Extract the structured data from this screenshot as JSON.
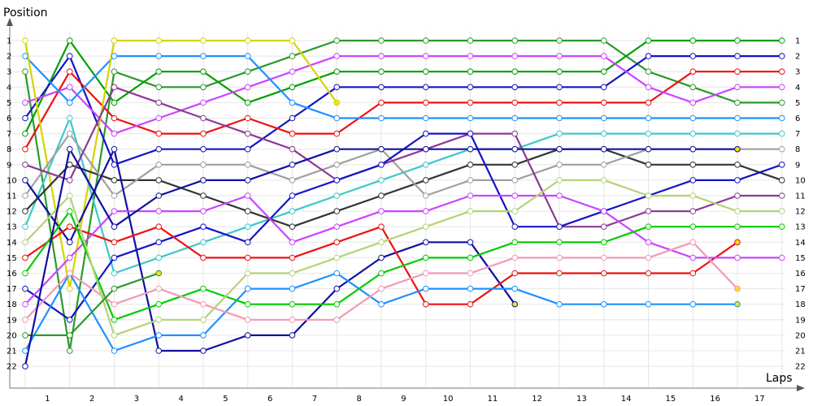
{
  "chart_data": {
    "type": "line",
    "title": "",
    "xlabel": "Laps",
    "ylabel": "Position",
    "x_ticks": [
      "1",
      "2",
      "3",
      "4",
      "5",
      "6",
      "7",
      "8",
      "9",
      "10",
      "11",
      "12",
      "13",
      "14",
      "15",
      "16",
      "17"
    ],
    "y_ticks": [
      "1",
      "2",
      "3",
      "4",
      "5",
      "6",
      "7",
      "8",
      "9",
      "10",
      "11",
      "12",
      "13",
      "14",
      "15",
      "16",
      "17",
      "18",
      "19",
      "20",
      "21",
      "22"
    ],
    "xlim": [
      0,
      17.8
    ],
    "ylim": [
      1,
      22
    ],
    "grid": true,
    "legend": "none",
    "series": [
      {
        "color": "#2a9a2a",
        "x": [
          0,
          1,
          2,
          3,
          4,
          5,
          6,
          7,
          8,
          9,
          10,
          11,
          12,
          13,
          14,
          15,
          16,
          17
        ],
        "y": [
          3,
          21,
          3,
          4,
          4,
          3,
          2,
          1,
          1,
          1,
          1,
          1,
          1,
          1,
          3,
          4,
          5,
          5
        ]
      },
      {
        "color": "#00a000",
        "x": [
          0,
          1,
          2,
          3,
          4,
          5,
          6,
          7,
          8,
          9,
          10,
          11,
          12,
          13,
          14,
          15,
          16,
          17
        ],
        "y": [
          7,
          1,
          5,
          3,
          3,
          5,
          4,
          3,
          3,
          3,
          3,
          3,
          3,
          3,
          1,
          1,
          1,
          1
        ]
      },
      {
        "color": "#1414c8",
        "x": [
          0,
          1,
          2,
          3,
          4,
          5,
          6,
          7,
          8,
          9,
          10,
          11,
          12,
          13,
          14,
          15,
          16,
          17
        ],
        "y": [
          6,
          2,
          9,
          8,
          8,
          8,
          6,
          4,
          4,
          4,
          4,
          4,
          4,
          4,
          2,
          2,
          2,
          2
        ]
      },
      {
        "color": "#ee1111",
        "x": [
          0,
          1,
          2,
          3,
          4,
          5,
          6,
          7,
          8,
          9,
          10,
          11,
          12,
          13,
          14,
          15,
          16,
          17
        ],
        "y": [
          8,
          3,
          6,
          7,
          7,
          6,
          7,
          7,
          5,
          5,
          5,
          5,
          5,
          5,
          5,
          3,
          3,
          3
        ]
      },
      {
        "color": "#cc44ff",
        "x": [
          0,
          1,
          2,
          3,
          4,
          5,
          6,
          7,
          8,
          9,
          10,
          11,
          12,
          13,
          14,
          15,
          16,
          17
        ],
        "y": [
          5,
          4,
          7,
          6,
          5,
          4,
          3,
          2,
          2,
          2,
          2,
          2,
          2,
          2,
          4,
          5,
          4,
          4
        ]
      },
      {
        "color": "#1e90ff",
        "x": [
          0,
          1,
          2,
          3,
          4,
          5,
          6,
          7,
          8,
          9,
          10,
          11,
          12,
          13,
          14,
          15,
          16,
          17
        ],
        "y": [
          2,
          5,
          2,
          2,
          2,
          2,
          5,
          6,
          6,
          6,
          6,
          6,
          6,
          6,
          6,
          6,
          6,
          6
        ]
      },
      {
        "color": "#d4d400",
        "x": [
          0,
          1,
          2,
          3,
          4,
          5,
          6,
          7
        ],
        "y": [
          1,
          17,
          1,
          1,
          1,
          1,
          1,
          5
        ]
      },
      {
        "color": "#3cc8c8",
        "x": [
          0,
          1,
          2,
          3,
          4,
          5,
          6,
          7,
          8,
          9,
          10,
          11,
          12,
          13,
          14,
          15,
          16,
          17
        ],
        "y": [
          13,
          6,
          16,
          15,
          14,
          13,
          12,
          11,
          10,
          9,
          8,
          8,
          7,
          7,
          7,
          7,
          7,
          7
        ]
      },
      {
        "color": "#333333",
        "x": [
          0,
          1,
          2,
          3,
          4,
          5,
          6,
          7,
          8,
          9,
          10,
          11,
          12,
          13,
          14,
          15,
          16,
          17
        ],
        "y": [
          12,
          9,
          10,
          10,
          11,
          12,
          13,
          12,
          11,
          10,
          9,
          9,
          8,
          8,
          9,
          9,
          9,
          10
        ]
      },
      {
        "color": "#a0a0a0",
        "x": [
          0,
          1,
          2,
          3,
          4,
          5,
          6,
          7,
          8,
          9,
          10,
          11,
          12,
          13,
          14,
          15,
          16,
          17
        ],
        "y": [
          11,
          7,
          11,
          9,
          9,
          9,
          10,
          9,
          8,
          11,
          10,
          10,
          9,
          9,
          8,
          8,
          8,
          8
        ]
      },
      {
        "color": "#8b3a96",
        "x": [
          0,
          1,
          2,
          3,
          4,
          5,
          6,
          7,
          8,
          9,
          10,
          11,
          12,
          13,
          14,
          15,
          16,
          17
        ],
        "y": [
          9,
          10,
          4,
          5,
          6,
          7,
          8,
          10,
          9,
          8,
          7,
          7,
          13,
          13,
          12,
          12,
          11,
          11
        ]
      },
      {
        "color": "#1010a0",
        "x": [
          0,
          1,
          2,
          3,
          4,
          5,
          6,
          7,
          8,
          9,
          10,
          11
        ],
        "y": [
          10,
          14,
          8,
          21,
          21,
          20,
          20,
          17,
          15,
          14,
          14,
          18
        ]
      },
      {
        "color": "#1414c8",
        "x": [
          0,
          1,
          2,
          3,
          4,
          5,
          6,
          7,
          8,
          9,
          10,
          11,
          12,
          13,
          14,
          15,
          16,
          17
        ],
        "y": [
          17,
          19,
          15,
          14,
          13,
          14,
          11,
          10,
          9,
          7,
          7,
          13,
          13,
          12,
          11,
          10,
          10,
          9
        ]
      },
      {
        "color": "#ee1111",
        "x": [
          0,
          1,
          2,
          3,
          4,
          5,
          6,
          7,
          8,
          9,
          10,
          11,
          12,
          13,
          14,
          15,
          16
        ],
        "y": [
          15,
          13,
          14,
          13,
          15,
          15,
          15,
          14,
          13,
          18,
          18,
          16,
          16,
          16,
          16,
          16,
          14
        ]
      },
      {
        "color": "#cc44ff",
        "x": [
          0,
          1,
          2,
          3,
          4,
          5,
          6,
          7,
          8,
          9,
          10,
          11,
          12,
          13,
          14,
          15,
          16,
          17
        ],
        "y": [
          18,
          15,
          12,
          12,
          12,
          11,
          14,
          13,
          12,
          12,
          11,
          11,
          11,
          12,
          14,
          15,
          15,
          15
        ]
      },
      {
        "color": "#1e90ff",
        "x": [
          0,
          1,
          2,
          3,
          4,
          5,
          6,
          7,
          8,
          9,
          10,
          11,
          12,
          13,
          14,
          15,
          16
        ],
        "y": [
          21,
          16,
          21,
          20,
          20,
          17,
          17,
          16,
          18,
          17,
          17,
          17,
          18,
          18,
          18,
          18,
          18
        ]
      },
      {
        "color": "#00cc00",
        "x": [
          0,
          1,
          2,
          3,
          4,
          5,
          6,
          7,
          8,
          9,
          10,
          11,
          12,
          13,
          14,
          15,
          16,
          17
        ],
        "y": [
          16,
          12,
          19,
          18,
          17,
          18,
          18,
          18,
          16,
          15,
          15,
          14,
          14,
          14,
          13,
          13,
          13,
          13
        ]
      },
      {
        "color": "#f09ab4",
        "x": [
          0,
          1,
          2,
          3,
          4,
          5,
          6,
          7,
          8,
          9,
          10,
          11,
          12,
          13,
          14,
          15,
          16
        ],
        "y": [
          19,
          16,
          18,
          17,
          18,
          19,
          19,
          19,
          17,
          16,
          16,
          15,
          15,
          15,
          15,
          14,
          17
        ]
      },
      {
        "color": "#b4d278",
        "x": [
          0,
          1,
          2,
          3,
          4,
          5,
          6,
          7,
          8,
          9,
          10,
          11,
          12,
          13,
          14,
          15,
          16,
          17
        ],
        "y": [
          14,
          11,
          20,
          19,
          19,
          16,
          16,
          15,
          14,
          13,
          12,
          12,
          10,
          10,
          11,
          11,
          12,
          12
        ]
      },
      {
        "color": "#2a9a2a",
        "x": [
          0,
          1,
          2,
          3
        ],
        "y": [
          20,
          20,
          17,
          16
        ]
      },
      {
        "color": "#1010a0",
        "x": [
          0,
          1,
          2,
          3,
          4,
          5,
          6,
          7,
          8,
          9,
          10,
          11,
          12,
          13,
          14,
          15,
          16
        ],
        "y": [
          22,
          8,
          13,
          11,
          10,
          10,
          9,
          8,
          8,
          8,
          8,
          8,
          8,
          8,
          8,
          8,
          8
        ]
      }
    ]
  }
}
